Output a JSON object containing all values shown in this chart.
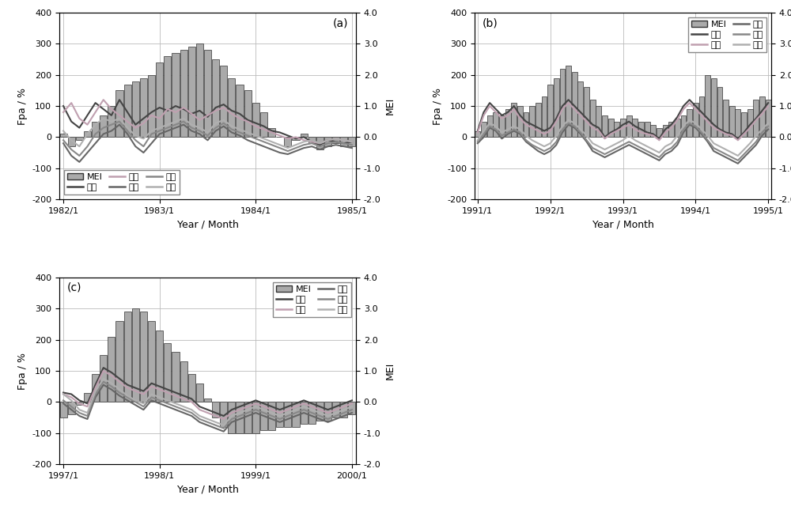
{
  "fig_bg": "#ffffff",
  "panel_bg": "#ffffff",
  "grid_color": "#bbbbbb",
  "bar_facecolor": "#aaaaaa",
  "bar_edgecolor": "#333333",
  "ylim_fpa": [
    -200,
    400
  ],
  "ylim_mei": [
    -2.0,
    4.0
  ],
  "yticks_fpa": [
    -200,
    -100,
    0,
    100,
    200,
    300,
    400
  ],
  "yticks_mei": [
    -2.0,
    -1.0,
    0.0,
    1.0,
    2.0,
    3.0,
    4.0
  ],
  "ylabel_left": "Fpa / %",
  "ylabel_right": "MEI",
  "xlabel": "Year / Month",
  "tian_color": "#444444",
  "guang_color": "#c0a0b0",
  "you_color": "#666666",
  "long_color": "#888888",
  "chang_color": "#b0b0b0",
  "tian_label": "天一",
  "guang_label": "光照",
  "you_label": "右江",
  "long_label": "龙滩",
  "chang_label": "长洲",
  "mei_label": "MEI",
  "panel_a": {
    "label": "(a)",
    "xticks": [
      1,
      13,
      25,
      37
    ],
    "xticklabels": [
      "1982/1",
      "1983/1",
      "1984/1",
      "1985/1"
    ],
    "n_months": 37,
    "legend_loc": "lower left",
    "legend_ncol": 3,
    "mei": [
      0.1,
      -0.3,
      -0.1,
      0.2,
      0.5,
      0.7,
      1.0,
      1.5,
      1.7,
      1.8,
      1.9,
      2.0,
      2.4,
      2.6,
      2.7,
      2.8,
      2.9,
      3.0,
      2.8,
      2.5,
      2.3,
      1.9,
      1.7,
      1.5,
      1.1,
      0.8,
      0.3,
      0.0,
      -0.3,
      -0.1,
      0.1,
      -0.2,
      -0.4,
      -0.3,
      -0.2,
      -0.3,
      -0.3
    ],
    "tian": [
      100,
      50,
      30,
      70,
      110,
      90,
      70,
      120,
      80,
      40,
      60,
      80,
      95,
      85,
      100,
      90,
      75,
      85,
      65,
      95,
      105,
      85,
      75,
      55,
      45,
      35,
      20,
      15,
      5,
      -5,
      0,
      -15,
      -25,
      -10,
      -15,
      -20,
      -15
    ],
    "guang": [
      80,
      110,
      60,
      40,
      80,
      120,
      90,
      70,
      50,
      30,
      45,
      70,
      60,
      90,
      80,
      95,
      75,
      55,
      70,
      85,
      95,
      75,
      60,
      50,
      35,
      25,
      15,
      5,
      -5,
      0,
      -10,
      -15,
      -20,
      -10,
      -5,
      -10,
      -15
    ],
    "you": [
      -20,
      -60,
      -80,
      -50,
      -20,
      10,
      20,
      40,
      10,
      -30,
      -50,
      -20,
      10,
      20,
      30,
      40,
      20,
      10,
      -10,
      20,
      35,
      15,
      5,
      -10,
      -20,
      -30,
      -40,
      -50,
      -55,
      -45,
      -35,
      -30,
      -40,
      -30,
      -25,
      -30,
      -35
    ],
    "long": [
      -10,
      -40,
      -60,
      -30,
      10,
      30,
      40,
      50,
      20,
      -10,
      -30,
      10,
      20,
      30,
      40,
      50,
      30,
      20,
      5,
      30,
      45,
      25,
      15,
      5,
      -5,
      -15,
      -25,
      -35,
      -45,
      -35,
      -25,
      -20,
      -30,
      -20,
      -15,
      -20,
      -25
    ],
    "chang": [
      20,
      -10,
      -30,
      10,
      40,
      60,
      50,
      60,
      30,
      5,
      -5,
      20,
      30,
      40,
      50,
      60,
      40,
      30,
      15,
      45,
      55,
      35,
      25,
      15,
      5,
      -5,
      -15,
      -25,
      -35,
      -25,
      -15,
      -10,
      -20,
      -10,
      -5,
      -10,
      -15
    ]
  },
  "panel_b": {
    "label": "(b)",
    "xticks": [
      1,
      13,
      25,
      37,
      49
    ],
    "xticklabels": [
      "1991/1",
      "1992/1",
      "1993/1",
      "1994/1",
      "1995/1"
    ],
    "n_months": 49,
    "legend_loc": "upper right",
    "legend_ncol": 2,
    "mei": [
      0.2,
      0.5,
      0.7,
      0.8,
      0.7,
      0.9,
      1.1,
      1.0,
      0.8,
      1.0,
      1.1,
      1.3,
      1.7,
      1.9,
      2.2,
      2.3,
      2.1,
      1.8,
      1.6,
      1.2,
      1.0,
      0.7,
      0.6,
      0.5,
      0.6,
      0.7,
      0.6,
      0.5,
      0.5,
      0.4,
      0.3,
      0.4,
      0.5,
      0.6,
      0.7,
      0.9,
      1.1,
      1.3,
      2.0,
      1.9,
      1.6,
      1.2,
      1.0,
      0.9,
      0.8,
      0.9,
      1.2,
      1.3,
      1.2
    ],
    "tian": [
      20,
      80,
      110,
      90,
      70,
      80,
      100,
      70,
      50,
      40,
      30,
      20,
      30,
      60,
      100,
      120,
      100,
      80,
      60,
      40,
      30,
      0,
      15,
      25,
      40,
      50,
      35,
      25,
      15,
      10,
      -5,
      25,
      40,
      65,
      100,
      120,
      100,
      80,
      60,
      40,
      25,
      15,
      10,
      -5,
      15,
      40,
      60,
      85,
      110
    ],
    "guang": [
      15,
      70,
      100,
      80,
      60,
      70,
      90,
      60,
      40,
      30,
      20,
      10,
      20,
      50,
      90,
      110,
      90,
      70,
      50,
      30,
      20,
      -5,
      10,
      20,
      30,
      40,
      25,
      15,
      10,
      5,
      -10,
      15,
      30,
      55,
      90,
      110,
      90,
      70,
      50,
      30,
      20,
      10,
      5,
      -10,
      10,
      30,
      55,
      75,
      100
    ],
    "you": [
      -20,
      0,
      30,
      20,
      -5,
      10,
      20,
      10,
      -15,
      -30,
      -45,
      -55,
      -45,
      -25,
      15,
      40,
      30,
      10,
      -15,
      -45,
      -55,
      -65,
      -55,
      -45,
      -35,
      -25,
      -35,
      -45,
      -55,
      -65,
      -75,
      -55,
      -45,
      -25,
      15,
      40,
      30,
      10,
      -15,
      -45,
      -55,
      -65,
      -75,
      -85,
      -65,
      -45,
      -25,
      5,
      25
    ],
    "long": [
      -15,
      10,
      35,
      25,
      5,
      15,
      25,
      15,
      -10,
      -25,
      -35,
      -45,
      -35,
      -15,
      25,
      45,
      35,
      15,
      -10,
      -35,
      -45,
      -55,
      -45,
      -35,
      -25,
      -15,
      -25,
      -35,
      -45,
      -55,
      -65,
      -45,
      -35,
      -15,
      25,
      45,
      35,
      15,
      -10,
      -35,
      -45,
      -55,
      -65,
      -75,
      -55,
      -35,
      -15,
      15,
      35
    ],
    "chang": [
      -10,
      20,
      45,
      35,
      15,
      25,
      35,
      25,
      5,
      -10,
      -20,
      -30,
      -20,
      5,
      35,
      55,
      45,
      25,
      5,
      -20,
      -30,
      -40,
      -30,
      -20,
      -10,
      5,
      -10,
      -20,
      -30,
      -40,
      -50,
      -30,
      -20,
      5,
      35,
      55,
      45,
      25,
      5,
      -20,
      -30,
      -40,
      -50,
      -60,
      -40,
      -20,
      5,
      25,
      45
    ]
  },
  "panel_c": {
    "label": "(c)",
    "xticks": [
      1,
      13,
      25,
      37
    ],
    "xticklabels": [
      "1997/1",
      "1998/1",
      "1999/1",
      "2000/1"
    ],
    "n_months": 37,
    "legend_loc": "upper right",
    "legend_ncol": 2,
    "mei": [
      -0.5,
      -0.4,
      -0.1,
      0.3,
      0.9,
      1.5,
      2.1,
      2.6,
      2.9,
      3.0,
      2.9,
      2.6,
      2.3,
      1.9,
      1.6,
      1.3,
      0.9,
      0.6,
      0.1,
      -0.5,
      -0.8,
      -1.0,
      -1.0,
      -1.0,
      -1.0,
      -0.9,
      -0.9,
      -0.8,
      -0.8,
      -0.8,
      -0.7,
      -0.7,
      -0.6,
      -0.6,
      -0.5,
      -0.5,
      -0.4
    ],
    "tian": [
      30,
      25,
      5,
      -5,
      55,
      110,
      95,
      75,
      55,
      45,
      35,
      60,
      50,
      40,
      30,
      20,
      10,
      -15,
      -25,
      -35,
      -45,
      -25,
      -15,
      -5,
      5,
      -5,
      -15,
      -25,
      -15,
      -5,
      5,
      -5,
      -15,
      -25,
      -15,
      -5,
      5
    ],
    "guang": [
      25,
      15,
      -5,
      -15,
      45,
      100,
      85,
      65,
      45,
      35,
      25,
      50,
      40,
      30,
      20,
      10,
      0,
      -25,
      -35,
      -45,
      -55,
      -35,
      -25,
      -15,
      -5,
      -15,
      -25,
      -35,
      -25,
      -15,
      -5,
      -15,
      -25,
      -35,
      -25,
      -15,
      -5
    ],
    "you": [
      -5,
      -25,
      -45,
      -55,
      15,
      55,
      40,
      20,
      5,
      -10,
      -25,
      5,
      -5,
      -15,
      -25,
      -35,
      -45,
      -65,
      -75,
      -85,
      -95,
      -65,
      -55,
      -45,
      -35,
      -45,
      -55,
      -65,
      -55,
      -45,
      -35,
      -45,
      -55,
      -65,
      -55,
      -45,
      -35
    ],
    "long": [
      5,
      -15,
      -35,
      -45,
      25,
      65,
      50,
      30,
      15,
      0,
      -15,
      15,
      5,
      -5,
      -15,
      -25,
      -35,
      -55,
      -65,
      -75,
      -85,
      -55,
      -45,
      -35,
      -25,
      -35,
      -45,
      -55,
      -45,
      -35,
      -25,
      -35,
      -45,
      -55,
      -45,
      -35,
      -25
    ],
    "chang": [
      25,
      5,
      -25,
      -35,
      35,
      75,
      60,
      40,
      20,
      5,
      -5,
      25,
      15,
      5,
      -5,
      -15,
      -25,
      -45,
      -55,
      -65,
      -75,
      -45,
      -35,
      -25,
      -15,
      -25,
      -35,
      -45,
      -35,
      -25,
      -15,
      -25,
      -35,
      -45,
      -35,
      -25,
      -15
    ]
  }
}
